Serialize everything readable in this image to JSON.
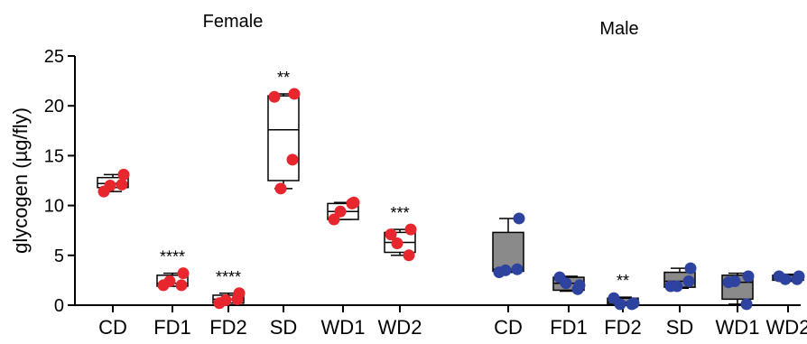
{
  "chart_data": {
    "type": "box",
    "ylabel": "glycogen (µg/fly)",
    "ylim": [
      0,
      25
    ],
    "yticks": [
      "0",
      "5",
      "10",
      "15",
      "20",
      "25"
    ],
    "groups": [
      {
        "label": "Female",
        "dot_color": "#e8262d",
        "box_fill": "#ffffff",
        "categories": [
          {
            "name": "CD",
            "q1": 11.8,
            "median": 12.2,
            "q3": 12.8,
            "min": 11.4,
            "max": 13.1,
            "points": [
              11.4,
              12.1,
              12.0,
              13.1
            ],
            "sig": ""
          },
          {
            "name": "FD1",
            "q1": 1.9,
            "median": 2.2,
            "q3": 3.0,
            "min": 1.9,
            "max": 3.2,
            "points": [
              2.0,
              2.0,
              2.4,
              3.2
            ],
            "sig": "****"
          },
          {
            "name": "FD2",
            "q1": 0.2,
            "median": 0.6,
            "q3": 1.0,
            "min": 0.2,
            "max": 1.2,
            "points": [
              0.2,
              0.6,
              0.5,
              1.2
            ],
            "sig": "****"
          },
          {
            "name": "SD",
            "q1": 12.5,
            "median": 17.6,
            "q3": 21.0,
            "min": 11.7,
            "max": 21.2,
            "points": [
              20.9,
              14.6,
              11.7,
              21.2
            ],
            "sig": "**"
          },
          {
            "name": "WD1",
            "q1": 8.6,
            "median": 9.4,
            "q3": 10.2,
            "min": 8.6,
            "max": 10.3,
            "points": [
              8.6,
              10.2,
              9.4,
              10.3
            ],
            "sig": ""
          },
          {
            "name": "WD2",
            "q1": 5.3,
            "median": 6.3,
            "q3": 7.3,
            "min": 5.0,
            "max": 7.6,
            "points": [
              7.1,
              5.0,
              6.2,
              7.6
            ],
            "sig": "***"
          }
        ]
      },
      {
        "label": "Male",
        "dot_color": "#2e43a0",
        "box_fill": "#8a8a8a",
        "categories": [
          {
            "name": "CD",
            "q1": 3.4,
            "median": 3.6,
            "q3": 7.3,
            "min": 3.3,
            "max": 8.7,
            "points": [
              3.3,
              3.6,
              3.5,
              8.7
            ],
            "sig": ""
          },
          {
            "name": "FD1",
            "q1": 1.5,
            "median": 2.2,
            "q3": 2.8,
            "min": 1.4,
            "max": 2.9,
            "points": [
              2.8,
              1.6,
              2.2,
              2.0
            ],
            "sig": ""
          },
          {
            "name": "FD2",
            "q1": 0.1,
            "median": 0.3,
            "q3": 0.7,
            "min": 0.1,
            "max": 0.8,
            "points": [
              0.7,
              0.1,
              0.1,
              0.2
            ],
            "sig": "**"
          },
          {
            "name": "SD",
            "q1": 1.8,
            "median": 2.4,
            "q3": 3.3,
            "min": 1.7,
            "max": 3.7,
            "points": [
              1.9,
              2.4,
              1.9,
              3.7
            ],
            "sig": ""
          },
          {
            "name": "WD1",
            "q1": 0.6,
            "median": 2.3,
            "q3": 3.0,
            "min": 0.1,
            "max": 3.2,
            "points": [
              2.3,
              0.1,
              2.4,
              2.9
            ],
            "sig": ""
          },
          {
            "name": "WD2",
            "q1": 2.5,
            "median": 2.7,
            "q3": 3.0,
            "min": 2.4,
            "max": 3.1,
            "points": [
              2.9,
              2.6,
              2.6,
              2.9
            ],
            "sig": ""
          }
        ]
      }
    ]
  }
}
